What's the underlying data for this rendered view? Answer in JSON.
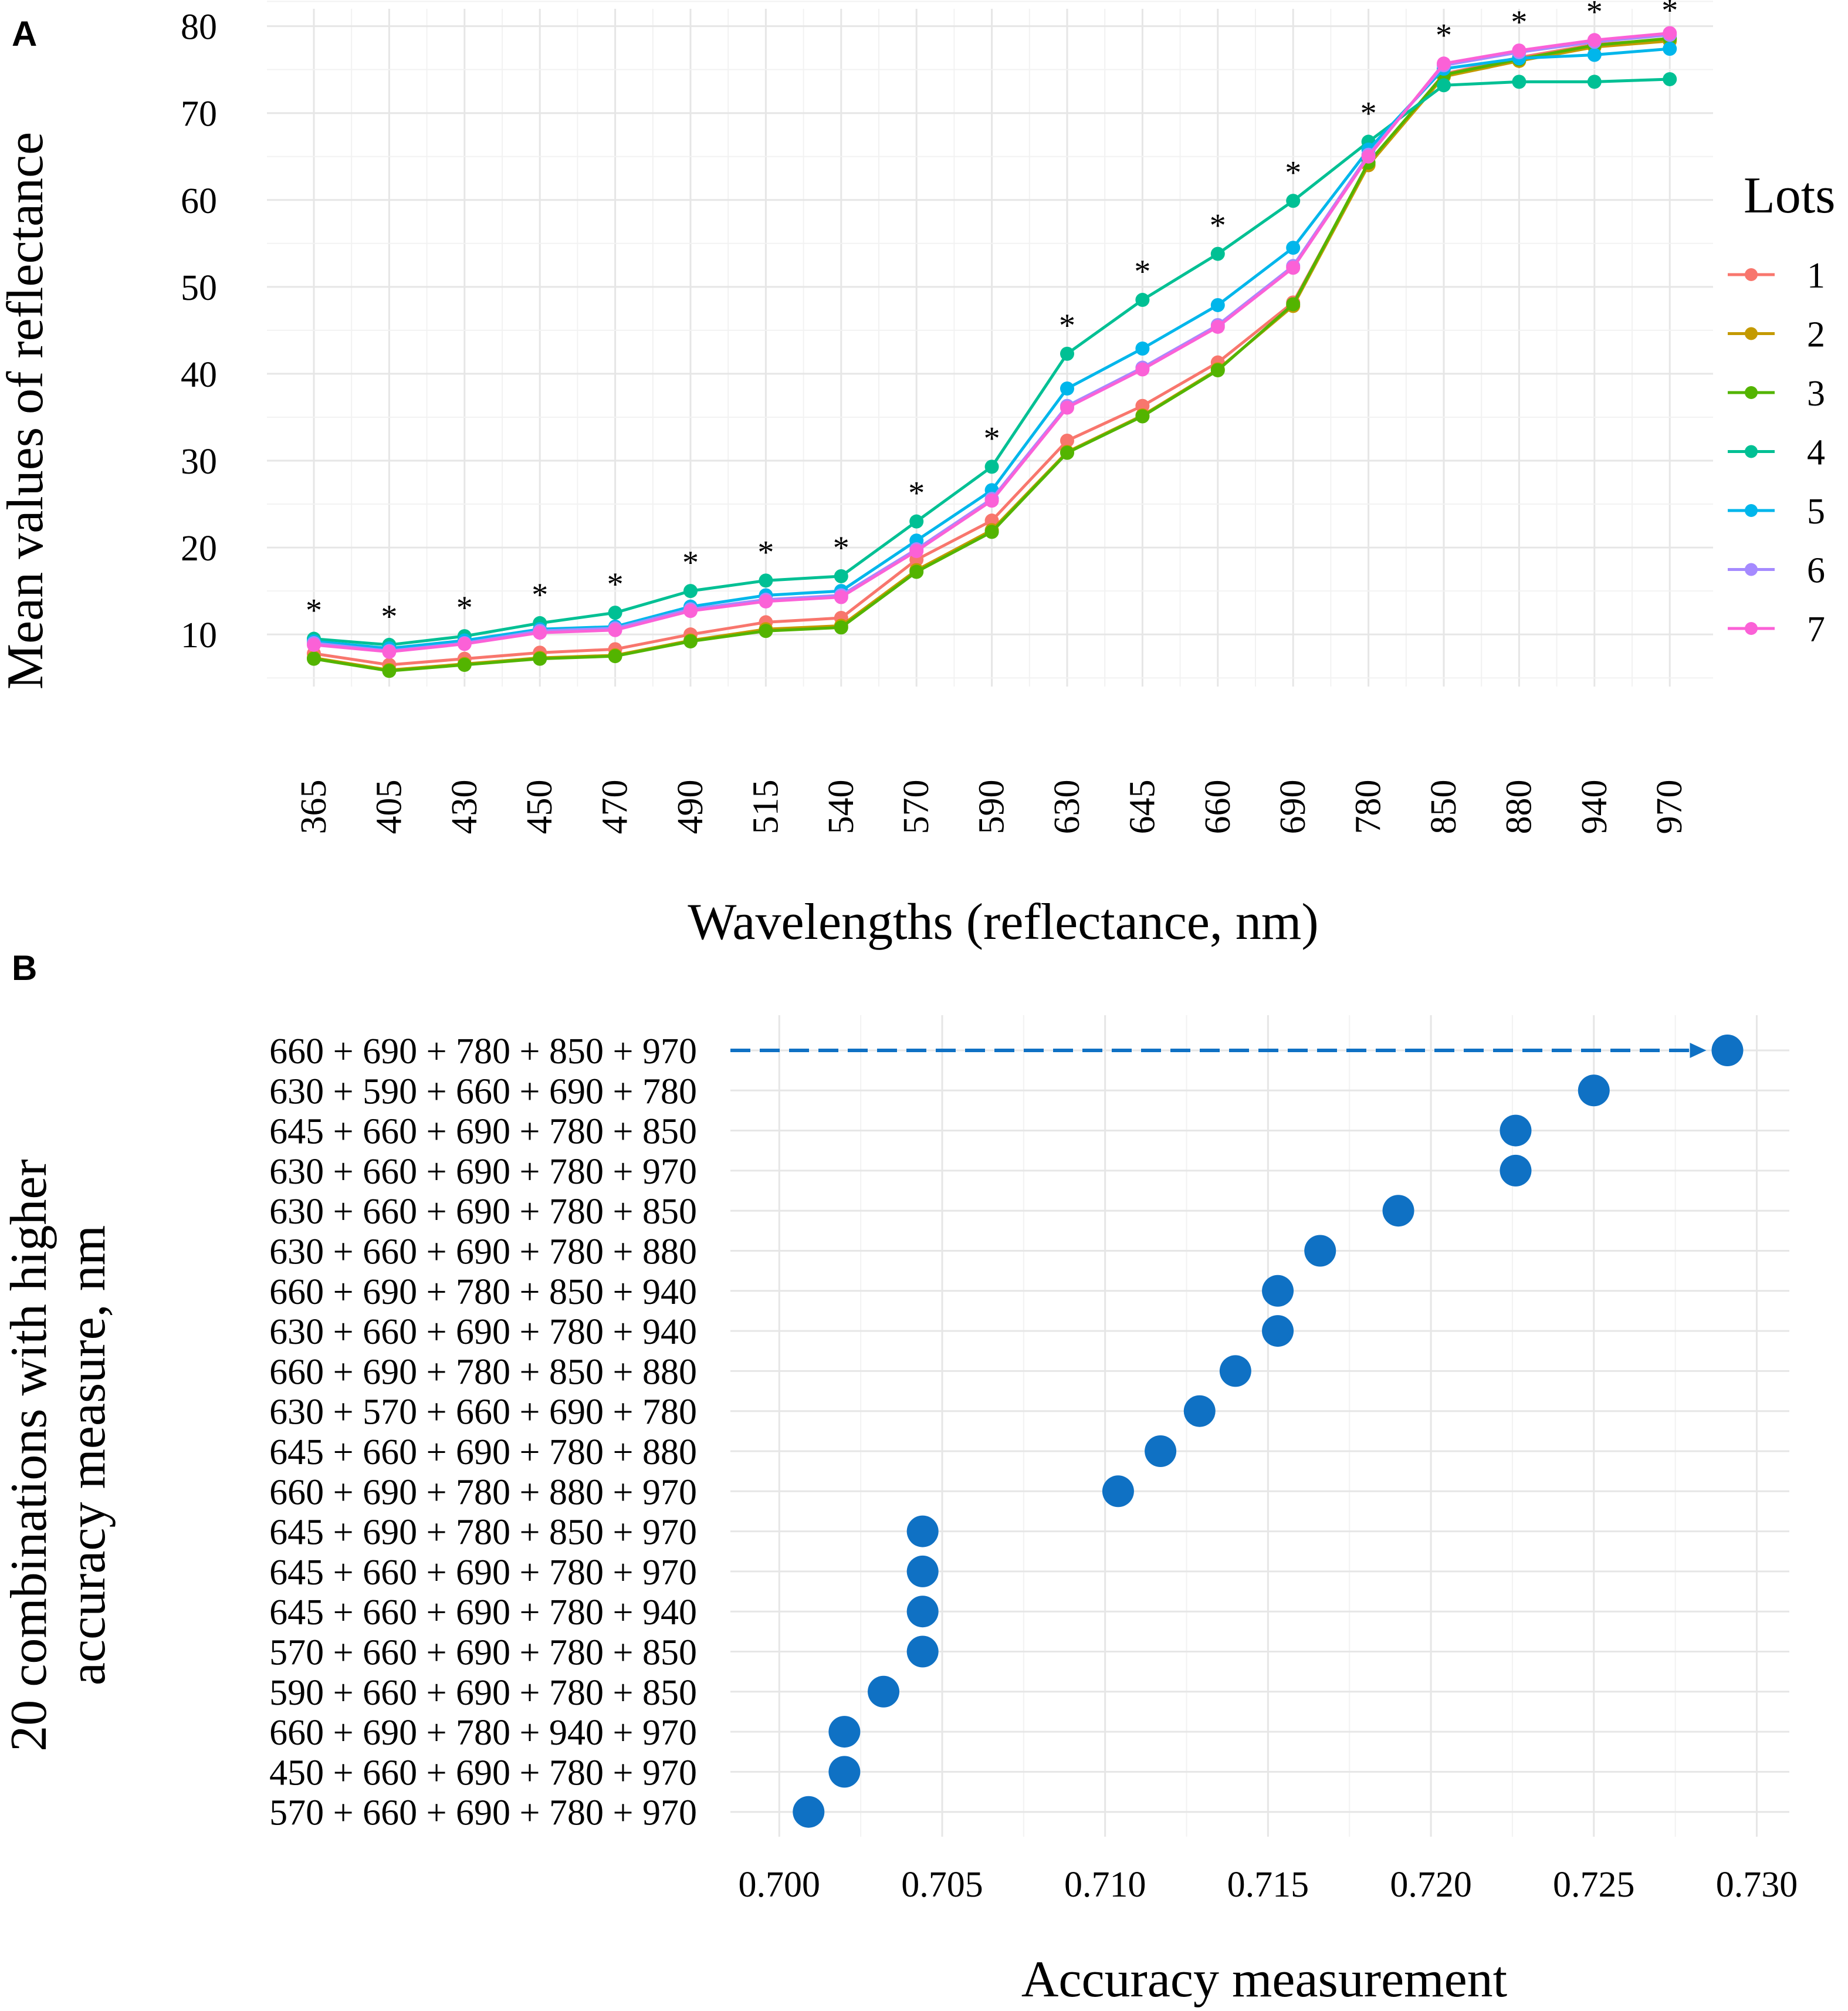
{
  "chart_data": [
    {
      "panel": "A",
      "type": "line",
      "xlabel": "Wavelengths (reflectance, nm)",
      "ylabel": "Mean values of reflectance",
      "categories": [
        "365",
        "405",
        "430",
        "450",
        "470",
        "490",
        "515",
        "540",
        "570",
        "590",
        "630",
        "645",
        "660",
        "690",
        "780",
        "850",
        "880",
        "940",
        "970"
      ],
      "yticks": [
        "10",
        "20",
        "30",
        "40",
        "50",
        "60",
        "70",
        "80"
      ],
      "ylim": [
        4,
        82
      ],
      "significance_marker": "*",
      "significant": [
        true,
        true,
        true,
        true,
        true,
        true,
        true,
        true,
        true,
        true,
        true,
        true,
        true,
        true,
        true,
        true,
        true,
        true,
        true
      ],
      "legend_title": "Lots",
      "series": [
        {
          "name": "1",
          "color": "#F8766D",
          "values": [
            7.8,
            6.5,
            7.2,
            7.9,
            8.3,
            10.0,
            11.4,
            11.9,
            18.6,
            23.1,
            32.3,
            36.3,
            41.3,
            48.2,
            64.1,
            74.5,
            76.4,
            77.9,
            78.5
          ]
        },
        {
          "name": "2",
          "color": "#C49A00",
          "values": [
            7.3,
            5.9,
            6.6,
            7.3,
            7.6,
            9.3,
            10.6,
            11.0,
            17.4,
            22.0,
            31.0,
            35.2,
            40.5,
            47.8,
            64.0,
            74.2,
            76.0,
            77.6,
            78.3
          ]
        },
        {
          "name": "3",
          "color": "#53B400",
          "values": [
            7.2,
            5.8,
            6.5,
            7.2,
            7.5,
            9.2,
            10.4,
            10.8,
            17.2,
            21.8,
            30.9,
            35.1,
            40.4,
            48.0,
            64.3,
            74.4,
            76.2,
            77.8,
            78.6
          ]
        },
        {
          "name": "4",
          "color": "#00C094",
          "values": [
            9.5,
            8.8,
            9.8,
            11.3,
            12.5,
            15.0,
            16.2,
            16.7,
            23.0,
            29.3,
            42.3,
            48.5,
            53.8,
            59.9,
            66.7,
            73.2,
            73.6,
            73.6,
            73.9
          ]
        },
        {
          "name": "5",
          "color": "#00B6EB",
          "values": [
            9.2,
            8.4,
            9.3,
            10.6,
            10.9,
            13.2,
            14.5,
            15.0,
            20.8,
            26.6,
            38.3,
            42.9,
            47.9,
            54.5,
            65.8,
            75.1,
            76.3,
            76.7,
            77.4
          ]
        },
        {
          "name": "6",
          "color": "#A58AFF",
          "values": [
            9.0,
            8.1,
            9.0,
            10.4,
            10.7,
            12.9,
            14.0,
            14.5,
            19.8,
            25.6,
            36.3,
            40.7,
            45.6,
            52.4,
            65.2,
            75.5,
            77.0,
            78.2,
            79.0
          ]
        },
        {
          "name": "7",
          "color": "#FB61D7",
          "values": [
            8.8,
            8.0,
            8.9,
            10.2,
            10.5,
            12.7,
            13.8,
            14.3,
            19.6,
            25.4,
            36.1,
            40.5,
            45.4,
            52.2,
            65.0,
            75.7,
            77.2,
            78.4,
            79.2
          ]
        }
      ]
    },
    {
      "panel": "B",
      "type": "scatter",
      "xlabel": "Accuracy measurement",
      "ylabel": "20 combinations with higher accuracy measure, nm",
      "ylabel_lines": [
        "20 combinations with higher",
        "accuracy measure, nm"
      ],
      "xlim": [
        0.6985,
        0.731
      ],
      "xticks": [
        0.7,
        0.705,
        0.71,
        0.715,
        0.72,
        0.725,
        0.73
      ],
      "xtick_labels": [
        "0.700",
        "0.705",
        "0.710",
        "0.715",
        "0.720",
        "0.725",
        "0.730"
      ],
      "point_color": "#0F71C4",
      "highlight_arrow": true,
      "categories": [
        "660 + 690 + 780 + 850 + 970",
        "630 + 590 + 660 + 690 + 780",
        "645 + 660 + 690 + 780 + 850",
        "630 + 660 + 690 + 780 + 970",
        "630 + 660 + 690 + 780 + 850",
        "630 + 660 + 690 + 780 + 880",
        "660 + 690 + 780 + 850 + 940",
        "630 + 660 + 690 + 780 + 940",
        "660 + 690 + 780 + 850 + 880",
        "630 + 570 + 660 + 690 + 780",
        "645 + 660 + 690 + 780 + 880",
        "660 + 690 + 780 + 880 + 970",
        "645 + 690 + 780 + 850 + 970",
        "645 + 660 + 690 + 780 + 970",
        "645 + 660 + 690 + 780 + 940",
        "570 + 660 + 690 + 780 + 850",
        "590 + 660 + 690 + 780 + 850",
        "660 + 690 + 780 + 940 + 970",
        "450 + 660 + 690 + 780 + 970",
        "570 + 660 + 690 + 780 + 970"
      ],
      "values": [
        0.7291,
        0.725,
        0.7226,
        0.7226,
        0.719,
        0.7166,
        0.7153,
        0.7153,
        0.714,
        0.7129,
        0.7117,
        0.7104,
        0.7044,
        0.7044,
        0.7044,
        0.7044,
        0.7032,
        0.702,
        0.702,
        0.7009
      ]
    }
  ],
  "panel_labels": {
    "a": "A",
    "b": "B"
  }
}
